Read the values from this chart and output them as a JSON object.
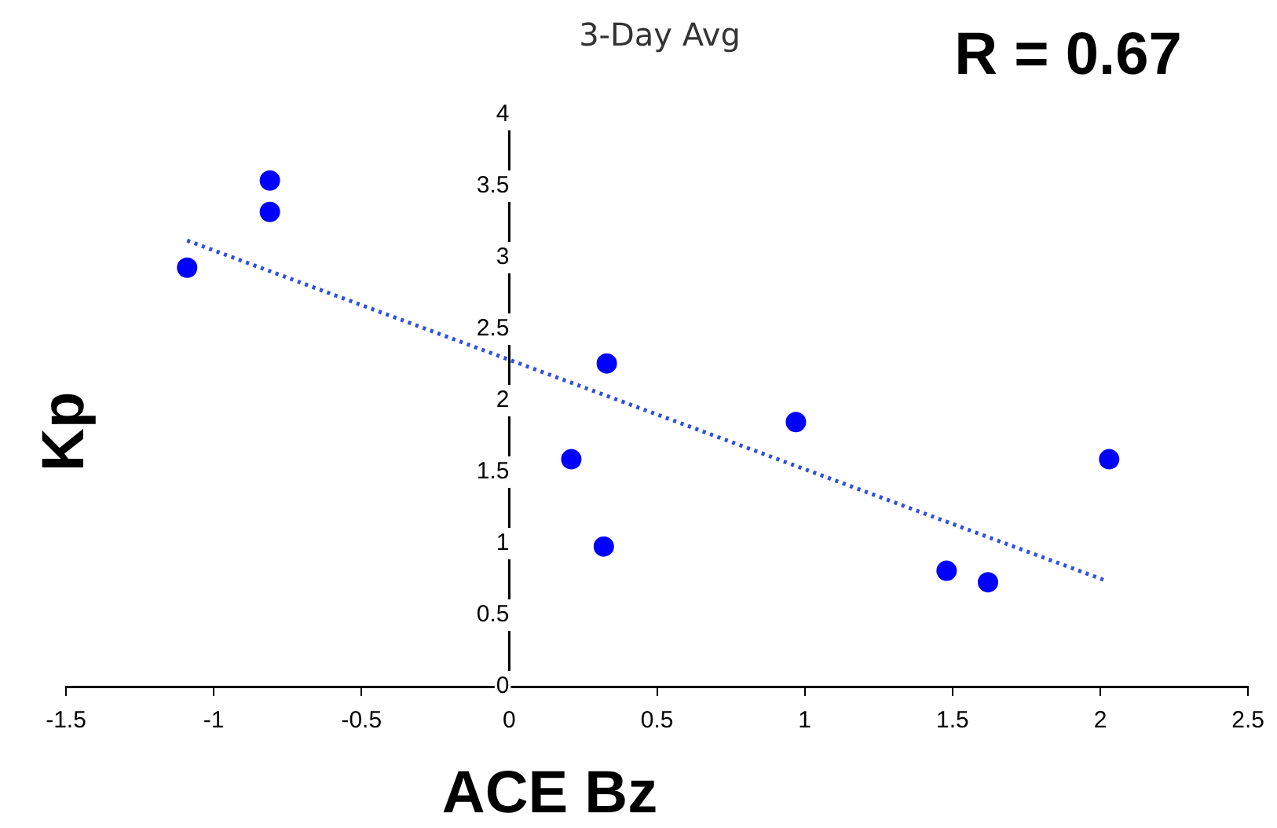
{
  "chart_data": {
    "type": "scatter",
    "title": "3-Day Avg",
    "xlabel": "ACE Bz",
    "ylabel": "Kp",
    "annotations": [
      "R = 0.67"
    ],
    "xlim": [
      -1.5,
      2.5
    ],
    "xticks": [
      -1.5,
      -1,
      -0.5,
      0,
      0.5,
      1,
      1.5,
      2,
      2.5
    ],
    "ylim": [
      0,
      4
    ],
    "yticks": [
      0,
      0.5,
      1,
      1.5,
      2,
      2.5,
      3,
      3.5,
      4
    ],
    "grid": false,
    "legend": false,
    "series": [
      {
        "type": "scatter",
        "color": "#0000ff",
        "marker": "circle",
        "x": [
          -1.09,
          -0.81,
          -0.81,
          0.33,
          0.21,
          0.32,
          0.97,
          1.48,
          1.62,
          2.03
        ],
        "values": [
          2.93,
          3.54,
          3.32,
          2.26,
          1.59,
          0.98,
          1.85,
          0.81,
          0.73,
          1.59
        ]
      },
      {
        "type": "line",
        "color": "#2f4fe0",
        "marker": "none",
        "line_style": "dotted",
        "x": [
          -1.09,
          2.02
        ],
        "values": [
          3.12,
          0.74
        ]
      }
    ]
  }
}
